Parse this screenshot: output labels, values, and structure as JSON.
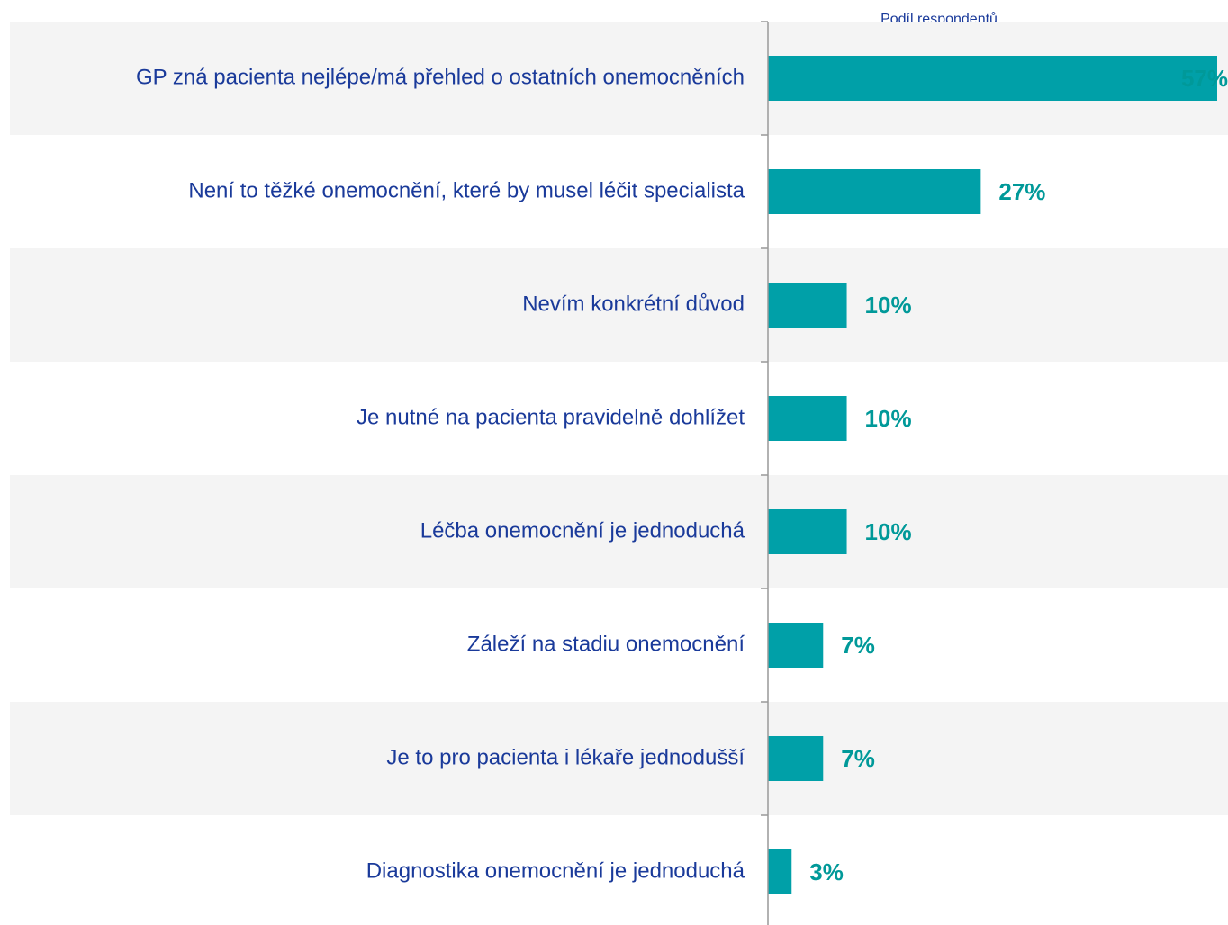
{
  "chart_data": {
    "type": "bar",
    "orientation": "horizontal",
    "axis_label": "Podíl respondentů",
    "categories": [
      "GP zná pacienta nejlépe/má přehled o ostatních onemocněních",
      "Není to těžké onemocnění, které by musel léčit specialista",
      "Nevím konkrétní důvod",
      "Je nutné na pacienta pravidelně dohlížet",
      "Léčba onemocnění je jednoduchá",
      "Záleží na stadiu onemocnění",
      "Je to pro pacienta i lékaře jednodušší",
      "Diagnostika onemocnění je jednoduchá"
    ],
    "values": [
      57,
      27,
      10,
      10,
      10,
      7,
      7,
      3
    ],
    "value_labels": [
      "57%",
      "27%",
      "10%",
      "10%",
      "10%",
      "7%",
      "7%",
      "3%"
    ],
    "color": "#00a0a8",
    "xlim": [
      0,
      57
    ]
  }
}
